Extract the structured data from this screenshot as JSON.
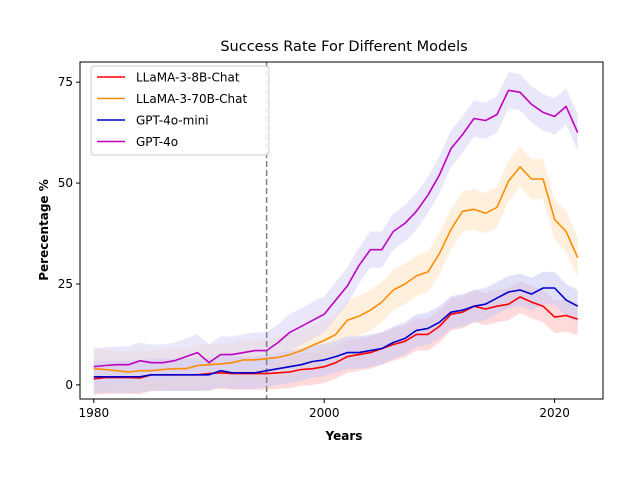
{
  "chart_data": {
    "type": "line",
    "title": "Success Rate For Different Models",
    "xlabel": "Years",
    "ylabel": "Perecentage %",
    "xlim": [
      1978.8,
      2024.2
    ],
    "ylim": [
      -3.5,
      80
    ],
    "xticks": [
      1980,
      2000,
      2020
    ],
    "yticks": [
      0,
      25,
      50,
      75
    ],
    "reference_line_x": 1995,
    "legend_position": "top-left",
    "grid": false,
    "x": [
      1980,
      1981,
      1982,
      1983,
      1984,
      1985,
      1986,
      1987,
      1988,
      1989,
      1990,
      1991,
      1992,
      1993,
      1994,
      1995,
      1996,
      1997,
      1998,
      1999,
      2000,
      2001,
      2002,
      2003,
      2004,
      2005,
      2006,
      2007,
      2008,
      2009,
      2010,
      2011,
      2012,
      2013,
      2014,
      2015,
      2016,
      2017,
      2018,
      2019,
      2020,
      2021,
      2022
    ],
    "series": [
      {
        "name": "LLaMA-3-8B-Chat",
        "color": "#ff0000",
        "band_fill": "#ffbcbc",
        "values": [
          1.5,
          1.8,
          1.8,
          1.8,
          1.7,
          2.5,
          2.5,
          2.5,
          2.5,
          2.5,
          2.8,
          3.0,
          2.8,
          2.8,
          2.8,
          2.8,
          3.0,
          3.2,
          3.8,
          4.0,
          4.5,
          5.5,
          7.0,
          7.5,
          8.0,
          9.0,
          10.0,
          10.8,
          12.5,
          12.5,
          14.5,
          17.5,
          18.0,
          19.5,
          18.8,
          19.5,
          20.0,
          21.8,
          20.5,
          19.5,
          16.8,
          17.2,
          16.3
        ],
        "band": 4.0
      },
      {
        "name": "LLaMA-3-70B-Chat",
        "color": "#ff8c00",
        "band_fill": "#ffe3c2",
        "values": [
          4.0,
          3.8,
          3.5,
          3.2,
          3.5,
          3.5,
          3.8,
          4.0,
          4.0,
          4.8,
          5.0,
          5.2,
          5.5,
          6.2,
          6.2,
          6.5,
          6.8,
          7.5,
          8.5,
          9.8,
          11.0,
          12.5,
          16.0,
          17.0,
          18.5,
          20.5,
          23.5,
          25.0,
          27.0,
          28.0,
          32.5,
          38.5,
          43.0,
          43.5,
          42.5,
          44.0,
          50.5,
          54.0,
          51.0,
          51.0,
          41.0,
          38.0,
          31.5
        ],
        "band": 5.0
      },
      {
        "name": "GPT-4o-mini",
        "color": "#0000cd",
        "band_fill": "#c8c8f5",
        "values": [
          2.0,
          2.0,
          2.0,
          2.0,
          2.0,
          2.5,
          2.5,
          2.5,
          2.5,
          2.5,
          2.5,
          3.5,
          3.0,
          3.0,
          3.0,
          3.5,
          4.0,
          4.5,
          5.0,
          5.8,
          6.2,
          7.0,
          8.0,
          8.0,
          8.5,
          9.0,
          10.5,
          11.5,
          13.5,
          14.0,
          15.5,
          18.0,
          18.5,
          19.5,
          20.0,
          21.5,
          23.0,
          23.5,
          22.5,
          24.0,
          24.0,
          21.0,
          19.5
        ],
        "band": 4.0
      },
      {
        "name": "GPT-4o",
        "color": "#c000c0",
        "band_fill": "#d8d4f8",
        "values": [
          4.5,
          4.8,
          5.0,
          5.0,
          6.0,
          5.5,
          5.5,
          6.0,
          7.0,
          8.0,
          5.5,
          7.5,
          7.5,
          8.0,
          8.5,
          8.5,
          10.5,
          13.0,
          14.5,
          16.0,
          17.5,
          21.0,
          24.5,
          29.5,
          33.5,
          33.5,
          38.0,
          40.0,
          43.0,
          47.0,
          52.0,
          58.5,
          62.0,
          66.0,
          65.5,
          67.0,
          73.0,
          72.5,
          69.5,
          67.5,
          66.5,
          69.0,
          62.5
        ],
        "band": 4.5
      }
    ]
  }
}
